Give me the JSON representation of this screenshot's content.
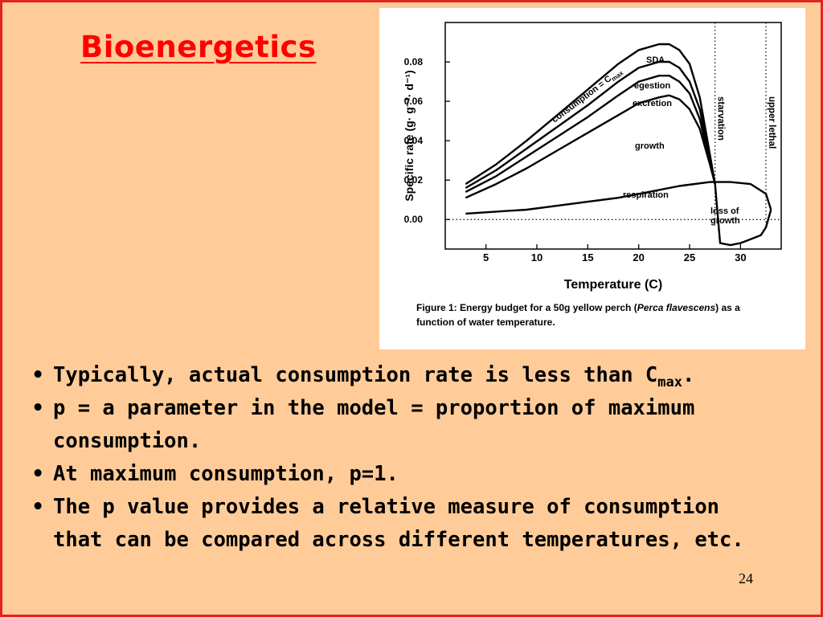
{
  "slide": {
    "title": "Bioenergetics",
    "bullets": [
      {
        "text": "Typically, actual consumption rate is less than C",
        "sub": "max",
        "tail": "."
      },
      {
        "text": "p = a parameter in the model = proportion of maximum consumption.",
        "sub": "",
        "tail": ""
      },
      {
        "text": "At maximum consumption, p=1.",
        "sub": "",
        "tail": ""
      },
      {
        "text": "The p value provides a relative measure of consumption that can be compared across different temperatures, etc.",
        "sub": "",
        "tail": ""
      }
    ],
    "bullet_char": "•",
    "page_number": "24",
    "colors": {
      "background": "#ffcc99",
      "border": "#e32222",
      "title": "#ff0000"
    }
  },
  "chart_data": {
    "type": "area",
    "xlabel": "Temperature (C)",
    "ylabel": "Specific rate (g· g⁻¹· d⁻¹)",
    "x_ticks": [
      "5",
      "10",
      "15",
      "20",
      "25",
      "30"
    ],
    "y_ticks": [
      "0.00",
      "0.02",
      "0.04",
      "0.06",
      "0.08"
    ],
    "xlim": [
      1,
      34
    ],
    "ylim": [
      -0.015,
      0.1
    ],
    "caption_prefix": "Figure 1:  Energy budget for a 50g yellow perch (",
    "caption_italic": "Perca flavescens",
    "caption_suffix": ") as a",
    "caption_line2": "function of water temperature.",
    "reference_lines": [
      {
        "label": "starvation",
        "x": 27.5
      },
      {
        "label": "upper lethal",
        "x": 32.5
      }
    ],
    "zero_line": 0.0,
    "series": [
      {
        "name": "consumption = C",
        "name_sub": "max",
        "x": [
          3,
          6,
          9,
          12,
          15,
          18,
          20,
          22,
          23,
          24,
          25,
          26,
          27,
          27.5
        ],
        "y": [
          0.018,
          0.028,
          0.04,
          0.053,
          0.066,
          0.079,
          0.086,
          0.089,
          0.089,
          0.086,
          0.079,
          0.062,
          0.033,
          0.018
        ]
      },
      {
        "name": "egestion",
        "x": [
          3,
          6,
          9,
          12,
          15,
          18,
          20,
          22,
          23,
          24,
          25,
          26,
          27,
          27.5
        ],
        "y": [
          0.016,
          0.025,
          0.036,
          0.047,
          0.058,
          0.07,
          0.077,
          0.08,
          0.08,
          0.077,
          0.07,
          0.056,
          0.031,
          0.018
        ]
      },
      {
        "name": "excretion",
        "x": [
          3,
          6,
          9,
          12,
          15,
          18,
          20,
          22,
          23,
          24,
          25,
          26,
          27,
          27.5
        ],
        "y": [
          0.014,
          0.022,
          0.032,
          0.042,
          0.052,
          0.063,
          0.07,
          0.073,
          0.073,
          0.07,
          0.064,
          0.051,
          0.029,
          0.018
        ]
      },
      {
        "name": "growth",
        "x": [
          3,
          6,
          9,
          12,
          15,
          18,
          20,
          22,
          23,
          24,
          25,
          26,
          27,
          27.5
        ],
        "y": [
          0.011,
          0.018,
          0.026,
          0.035,
          0.044,
          0.053,
          0.059,
          0.062,
          0.063,
          0.061,
          0.056,
          0.046,
          0.028,
          0.018
        ]
      },
      {
        "name": "respiration",
        "x": [
          3,
          6,
          9,
          12,
          15,
          18,
          21,
          24,
          27,
          29,
          31,
          32.5,
          33
        ],
        "y": [
          0.003,
          0.004,
          0.005,
          0.007,
          0.009,
          0.011,
          0.014,
          0.017,
          0.019,
          0.019,
          0.018,
          0.013,
          0.005
        ]
      },
      {
        "name": "loss of growth",
        "name_line2": "growth",
        "x": [
          27.5,
          28,
          29,
          30,
          31,
          32,
          32.5,
          33
        ],
        "y": [
          0.018,
          -0.012,
          -0.013,
          -0.012,
          -0.01,
          -0.008,
          -0.004,
          0.005
        ]
      }
    ]
  }
}
